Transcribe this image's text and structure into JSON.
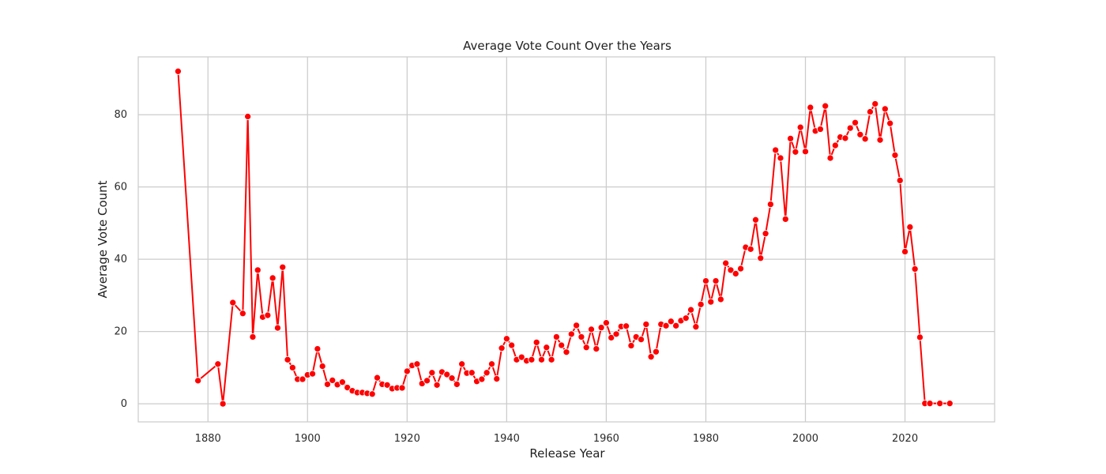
{
  "chart_data": {
    "type": "line",
    "title": "Average Vote Count Over the Years",
    "xlabel": "Release Year",
    "ylabel": "Average Vote Count",
    "xlim": [
      1866,
      2038
    ],
    "ylim": [
      -5,
      96
    ],
    "x_ticks": [
      1880,
      1900,
      1920,
      1940,
      1960,
      1980,
      2000,
      2020
    ],
    "y_ticks": [
      0,
      20,
      40,
      60,
      80
    ],
    "grid": true,
    "series": [
      {
        "color": "#ff0000",
        "marker": "circle",
        "x": [
          1874,
          1878,
          1882,
          1883,
          1885,
          1887,
          1888,
          1889,
          1890,
          1891,
          1892,
          1893,
          1894,
          1895,
          1896,
          1897,
          1898,
          1899,
          1900,
          1901,
          1902,
          1903,
          1904,
          1905,
          1906,
          1907,
          1908,
          1909,
          1910,
          1911,
          1912,
          1913,
          1914,
          1915,
          1916,
          1917,
          1918,
          1919,
          1920,
          1921,
          1922,
          1923,
          1924,
          1925,
          1926,
          1927,
          1928,
          1929,
          1930,
          1931,
          1932,
          1933,
          1934,
          1935,
          1936,
          1937,
          1938,
          1939,
          1940,
          1941,
          1942,
          1943,
          1944,
          1945,
          1946,
          1947,
          1948,
          1949,
          1950,
          1951,
          1952,
          1953,
          1954,
          1955,
          1956,
          1957,
          1958,
          1959,
          1960,
          1961,
          1962,
          1963,
          1964,
          1965,
          1966,
          1967,
          1968,
          1969,
          1970,
          1971,
          1972,
          1973,
          1974,
          1975,
          1976,
          1977,
          1978,
          1979,
          1980,
          1981,
          1982,
          1983,
          1984,
          1985,
          1986,
          1987,
          1988,
          1989,
          1990,
          1991,
          1992,
          1993,
          1994,
          1995,
          1996,
          1997,
          1998,
          1999,
          2000,
          2001,
          2002,
          2003,
          2004,
          2005,
          2006,
          2007,
          2008,
          2009,
          2010,
          2011,
          2012,
          2013,
          2014,
          2015,
          2016,
          2017,
          2018,
          2019,
          2020,
          2021,
          2022,
          2023,
          2024,
          2025,
          2027,
          2029
        ],
        "values": [
          92,
          6.4,
          11,
          0,
          28,
          25,
          79.5,
          18.5,
          37,
          24,
          24.5,
          34.8,
          21,
          37.8,
          12.2,
          10,
          6.8,
          6.8,
          8,
          8.3,
          15.2,
          10.4,
          5.4,
          6.5,
          5.3,
          6,
          4.5,
          3.6,
          3.1,
          3.1,
          2.9,
          2.7,
          7.2,
          5.4,
          5.2,
          4.2,
          4.4,
          4.4,
          9,
          10.6,
          11,
          5.6,
          6.4,
          8.6,
          5.2,
          8.8,
          8.1,
          7.1,
          5.4,
          11,
          8.5,
          8.6,
          6.2,
          6.8,
          8.6,
          11,
          6.9,
          15.4,
          18,
          16.2,
          12.2,
          12.9,
          11.9,
          12.2,
          17,
          12.2,
          15.6,
          12.2,
          18.5,
          16.2,
          14.3,
          19.3,
          21.7,
          18.5,
          15.6,
          20.6,
          15.2,
          21.1,
          22.4,
          18.3,
          19.3,
          21.4,
          21.5,
          16.1,
          18.5,
          17.8,
          22,
          13,
          14.4,
          22,
          21.6,
          22.8,
          21.6,
          23,
          23.7,
          26,
          21.3,
          27.5,
          34,
          28.2,
          34,
          28.9,
          38.9,
          37,
          36,
          37.4,
          43.3,
          42.8,
          50.9,
          40.3,
          47.1,
          55.2,
          70.2,
          68,
          51.1,
          73.4,
          69.7,
          76.5,
          69.8,
          82,
          75.5,
          76,
          82.4,
          68,
          71.5,
          73.8,
          73.5,
          76.3,
          77.8,
          74.5,
          73.3,
          80.8,
          83,
          73,
          81.6,
          77.6,
          68.8,
          61.8,
          42.1,
          48.9,
          37.3,
          18.4,
          0.1,
          0.1,
          0.1,
          0.1
        ]
      }
    ]
  }
}
